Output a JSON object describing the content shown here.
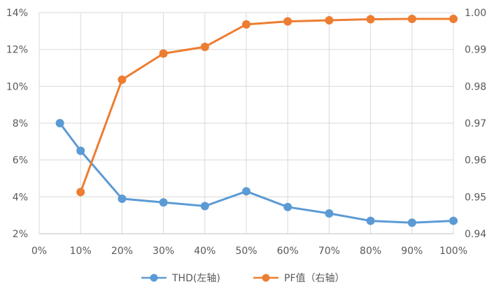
{
  "chart_data": {
    "type": "line",
    "x": [
      "0%",
      "10%",
      "20%",
      "30%",
      "40%",
      "50%",
      "60%",
      "70%",
      "80%",
      "90%",
      "100%"
    ],
    "x_values": [
      0,
      10,
      20,
      30,
      40,
      50,
      60,
      70,
      80,
      90,
      100
    ],
    "xlim": [
      0,
      100
    ],
    "y_left": {
      "ylim": [
        2,
        14
      ],
      "ticks": [
        2,
        4,
        6,
        8,
        10,
        12,
        14
      ],
      "tick_labels": [
        "2%",
        "4%",
        "6%",
        "8%",
        "10%",
        "12%",
        "14%"
      ]
    },
    "y_right": {
      "ylim": [
        0.94,
        1.0
      ],
      "ticks": [
        0.94,
        0.95,
        0.96,
        0.97,
        0.98,
        0.99,
        1.0
      ],
      "tick_labels": [
        "0.94",
        "0.95",
        "0.96",
        "0.97",
        "0.98",
        "0.99",
        "1.00"
      ]
    },
    "grid": true,
    "legend_position": "bottom",
    "series": [
      {
        "name": "THD(左轴)",
        "axis": "left",
        "color": "#5b9bd5",
        "x": [
          5,
          10,
          20,
          30,
          40,
          50,
          60,
          70,
          80,
          90,
          100
        ],
        "values": [
          8.0,
          6.5,
          3.9,
          3.7,
          3.5,
          4.3,
          3.45,
          3.1,
          2.7,
          2.6,
          2.7
        ]
      },
      {
        "name": "PF值（右轴）",
        "axis": "right",
        "color": "#ed7d31",
        "x": [
          10,
          20,
          30,
          40,
          50,
          60,
          70,
          80,
          90,
          100
        ],
        "values": [
          0.9513,
          0.9818,
          0.9889,
          0.9907,
          0.9968,
          0.9976,
          0.9979,
          0.9982,
          0.9983,
          0.9983
        ]
      }
    ]
  }
}
